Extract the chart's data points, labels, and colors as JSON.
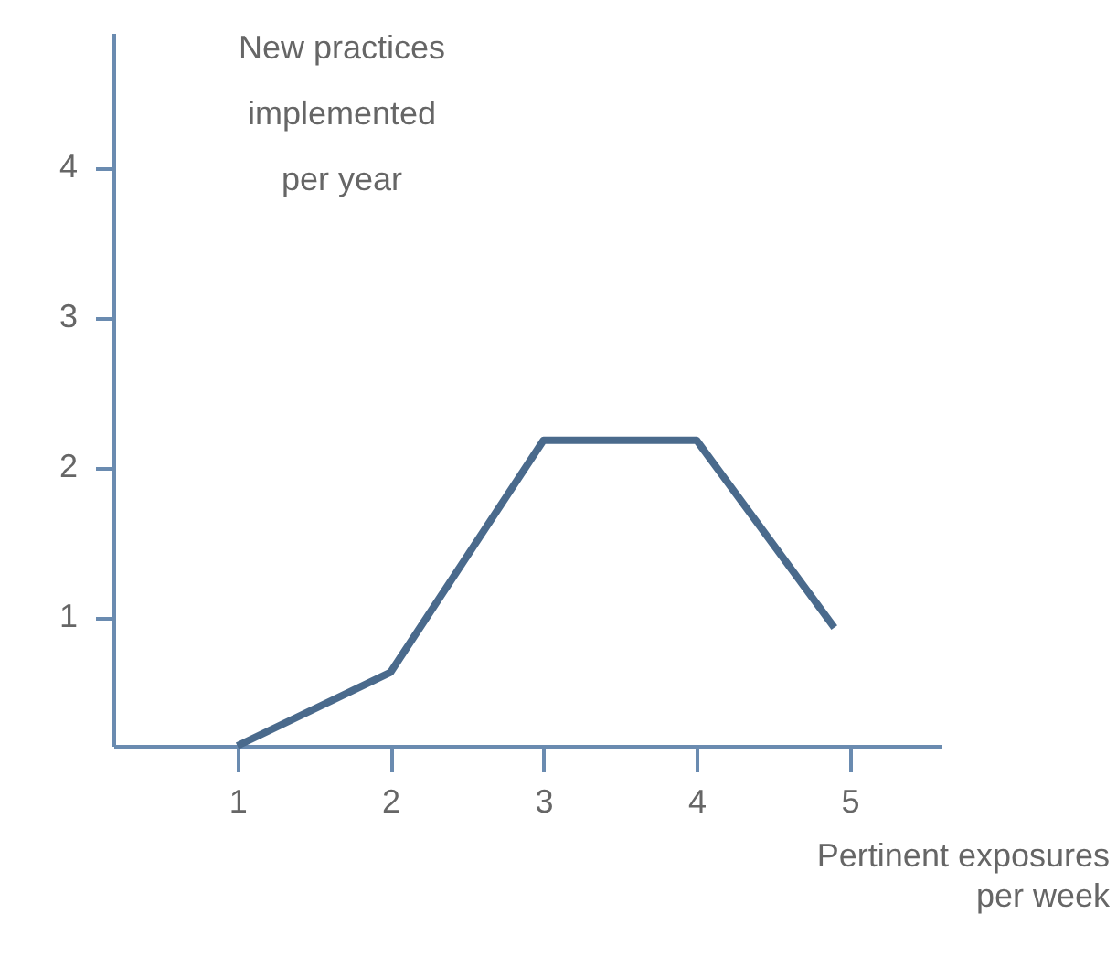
{
  "chart_data": {
    "type": "line",
    "xlabel": "Pertinent exposures\nper week",
    "ylabel": "New practices\nimplemented\nper year",
    "x": [
      1,
      2,
      3,
      4,
      4.9
    ],
    "series": [
      {
        "color": "#4a6a8c",
        "values": [
          0.14,
          0.63,
          2.18,
          2.18,
          0.93
        ]
      }
    ],
    "xlim": [
      0.19,
      5.6
    ],
    "ylim": [
      0.14,
      4.9
    ],
    "xticks": [
      1,
      2,
      3,
      4,
      5
    ],
    "yticks": [
      1,
      2,
      3,
      4
    ],
    "grid": false,
    "marker": "none",
    "line_style": "solid"
  }
}
